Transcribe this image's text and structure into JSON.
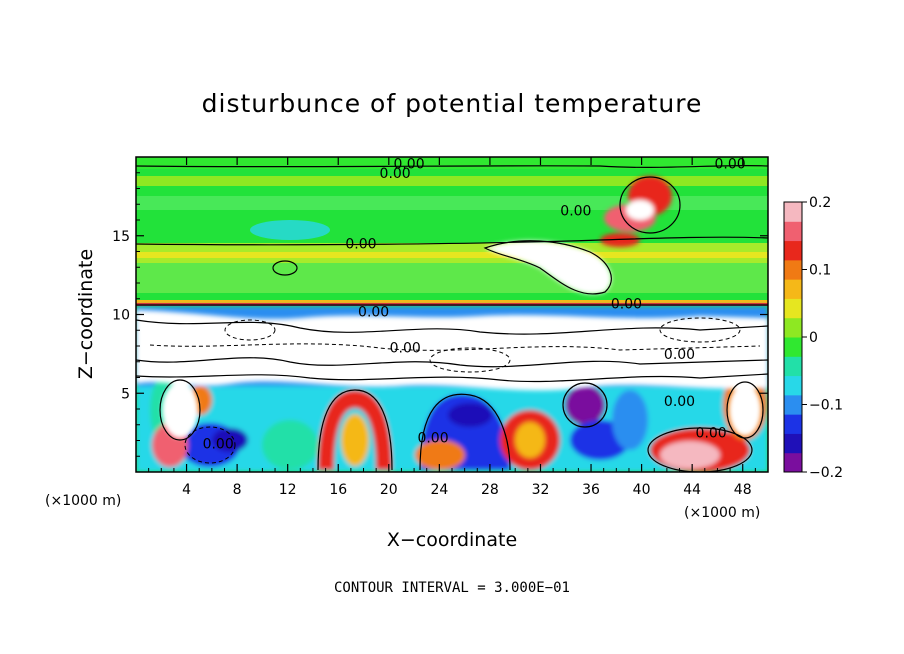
{
  "chart_data": {
    "type": "heatmap",
    "title": "disturbunce of potential temperature",
    "xlabel": "X−coordinate",
    "ylabel": "Z−coordinate",
    "x_unit_left": "(×1000 m)",
    "x_unit_right": "(×1000 m)",
    "xlim": [
      0,
      50
    ],
    "ylim": [
      0,
      20
    ],
    "x_ticks": [
      4,
      8,
      12,
      16,
      20,
      24,
      28,
      32,
      36,
      40,
      44,
      48
    ],
    "y_ticks": [
      5,
      10,
      15
    ],
    "colorbar": {
      "range": [
        -0.2,
        0.2
      ],
      "tick_values": [
        0.2,
        0.1,
        0,
        -0.1,
        -0.2
      ],
      "tick_labels": [
        "0.2",
        "0.1",
        "0",
        "−0.1",
        "−0.2"
      ],
      "colors": [
        "#7a0e9e",
        "#1f10b8",
        "#1c33e6",
        "#2b8ef0",
        "#28d8e8",
        "#22e0a8",
        "#30e830",
        "#8ee822",
        "#e6e620",
        "#f5b818",
        "#f07a14",
        "#e8281c",
        "#f06070",
        "#f5b8c0"
      ]
    },
    "contour_labels": [
      {
        "text": "0.00",
        "x": 21.6,
        "y": 19.6
      },
      {
        "text": "0.00",
        "x": 20.5,
        "y": 19.0
      },
      {
        "text": "0.00",
        "x": 47.0,
        "y": 19.6
      },
      {
        "text": "0.00",
        "x": 34.8,
        "y": 16.6
      },
      {
        "text": "0.00",
        "x": 17.8,
        "y": 14.5
      },
      {
        "text": "0.00",
        "x": 18.8,
        "y": 10.2
      },
      {
        "text": "0.00",
        "x": 38.8,
        "y": 10.7
      },
      {
        "text": "0.00",
        "x": 21.3,
        "y": 7.9
      },
      {
        "text": "0.00",
        "x": 43.0,
        "y": 7.5
      },
      {
        "text": "0.00",
        "x": 43.0,
        "y": 4.5
      },
      {
        "text": "0.00",
        "x": 45.5,
        "y": 2.5
      },
      {
        "text": "0.00",
        "x": 6.5,
        "y": 1.8
      },
      {
        "text": "0.00",
        "x": 23.5,
        "y": 2.2
      }
    ],
    "contour_interval": "CONTOUR INTERVAL = 3.000E−01"
  }
}
